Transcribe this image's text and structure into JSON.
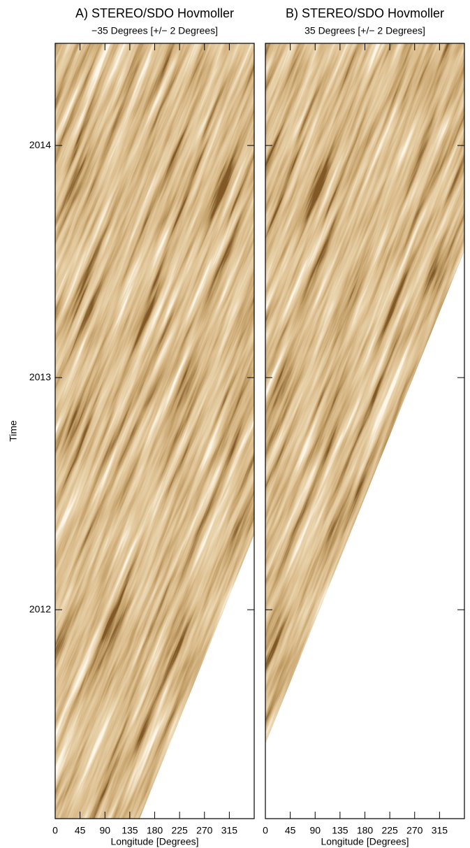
{
  "chart_data": [
    {
      "type": "image",
      "title": "A) STEREO/SDO Hovmoller",
      "subtitle": "−35 Degrees [+/− 2 Degrees]",
      "x_label": "Longitude [Degrees]",
      "y_label": "Time",
      "xlim": [
        0,
        360
      ],
      "xticks": [
        0,
        45,
        90,
        135,
        180,
        225,
        270,
        315
      ],
      "ylim": [
        2011.1,
        2014.44
      ],
      "yticks": [
        2012,
        2013,
        2014
      ],
      "show_ytick_labels": true
    },
    {
      "type": "image",
      "title": "B) STEREO/SDO Hovmoller",
      "subtitle": "35 Degrees [+/− 2 Degrees]",
      "x_label": "Longitude [Degrees]",
      "xlim": [
        0,
        360
      ],
      "xticks": [
        0,
        45,
        90,
        135,
        180,
        225,
        270,
        315
      ],
      "ylim": [
        2011.1,
        2014.44
      ],
      "yticks": [
        2012,
        2013,
        2014
      ],
      "show_ytick_labels": false
    }
  ]
}
